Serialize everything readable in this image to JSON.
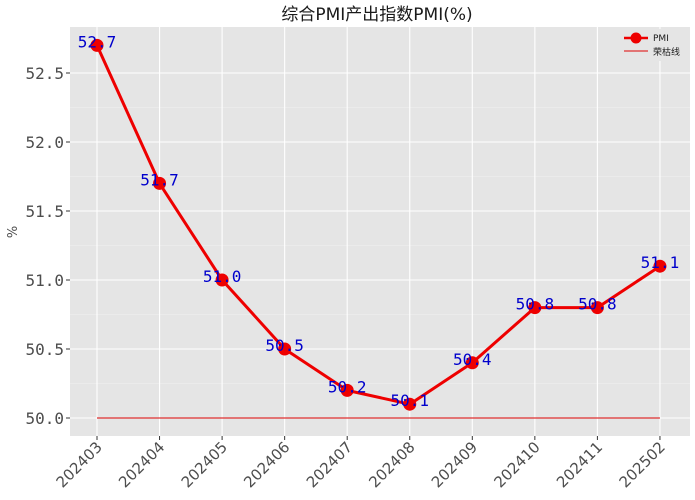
{
  "chart_data": {
    "type": "line",
    "title": "综合PMI产出指数PMI(%)",
    "xlabel": "",
    "ylabel": "%",
    "categories": [
      "202403",
      "202404",
      "202405",
      "202406",
      "202407",
      "202408",
      "202409",
      "202410",
      "202411",
      "202502"
    ],
    "series": [
      {
        "name": "PMI",
        "values": [
          52.7,
          51.7,
          51.0,
          50.5,
          50.2,
          50.1,
          50.4,
          50.8,
          50.8,
          51.1
        ],
        "color": "#ee0000",
        "marker": "circle",
        "data_labels": [
          "52.7",
          "51.7",
          "51.0",
          "50.5",
          "50.2",
          "50.1",
          "50.4",
          "50.8",
          "50.8",
          "51.1"
        ],
        "data_label_color": "#0000cc"
      },
      {
        "name": "荣枯线",
        "values": [
          50.0,
          50.0,
          50.0,
          50.0,
          50.0,
          50.0,
          50.0,
          50.0,
          50.0,
          50.0
        ],
        "color": "#e03030",
        "marker": "none"
      }
    ],
    "yticks": [
      50.0,
      50.5,
      51.0,
      51.5,
      52.0,
      52.5
    ],
    "ytick_labels": [
      "50.0",
      "50.5",
      "51.0",
      "51.5",
      "52.0",
      "52.5"
    ],
    "ylim": [
      49.87,
      52.79
    ],
    "grid": true,
    "legend_position": "upper right",
    "background": "#e5e5e5",
    "gridline_color": "#ffffff"
  },
  "legend": {
    "items": [
      {
        "label": "PMI"
      },
      {
        "label": "荣枯线"
      }
    ]
  }
}
